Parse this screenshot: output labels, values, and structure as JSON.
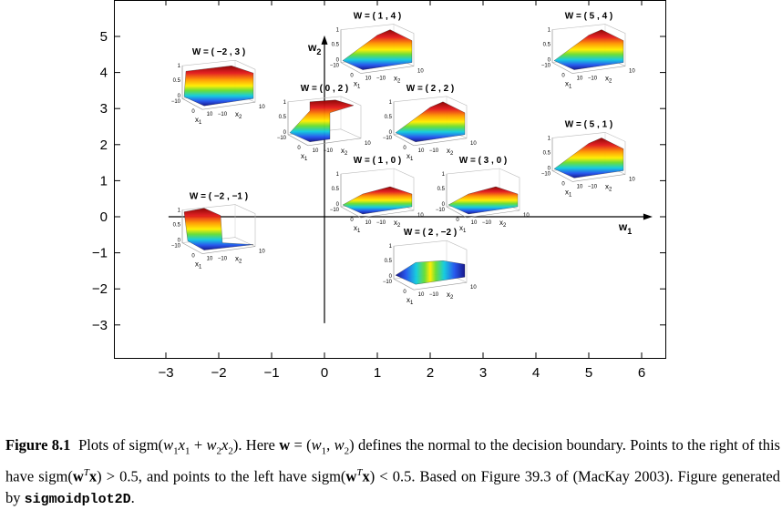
{
  "chart_data": {
    "type": "scatter",
    "title": "",
    "xlabel": "w1",
    "ylabel": "w2",
    "xlim": [
      -3.9,
      7.0
    ],
    "ylim": [
      -3.9,
      5.9
    ],
    "xticks": [
      "−3",
      "−2",
      "−1",
      "0",
      "1",
      "2",
      "3",
      "4",
      "5",
      "6"
    ],
    "yticks": [
      "5",
      "4",
      "3",
      "2",
      "1",
      "0",
      "−1",
      "−2",
      "−3"
    ],
    "axis_x_name": "w",
    "axis_x_sub": "1",
    "axis_y_name": "w",
    "axis_y_sub": "2",
    "inset_zticks": [
      "1",
      "0.5",
      "0"
    ],
    "inset_xy_labels": [
      "−10",
      "0",
      "10",
      "10",
      "−10"
    ],
    "inset_x1": "x",
    "inset_x1_sub": "1",
    "inset_x2": "x",
    "inset_x2_sub": "2",
    "points": [
      {
        "label": "W = ( 1 , 4 )",
        "w": [
          1,
          4
        ]
      },
      {
        "label": "W = ( 5 , 4 )",
        "w": [
          5,
          4
        ]
      },
      {
        "label": "W = ( −2 , 3 )",
        "w": [
          -2,
          3
        ]
      },
      {
        "label": "W = ( 0 , 2 )",
        "w": [
          0,
          2
        ]
      },
      {
        "label": "W = ( 2 , 2 )",
        "w": [
          2,
          2
        ]
      },
      {
        "label": "W = ( 5 , 1 )",
        "w": [
          5,
          1
        ]
      },
      {
        "label": "W = ( 1 , 0 )",
        "w": [
          1,
          0
        ]
      },
      {
        "label": "W = ( 3 , 0 )",
        "w": [
          3,
          0
        ]
      },
      {
        "label": "W = ( −2 , −1 )",
        "w": [
          -2,
          -1
        ]
      },
      {
        "label": "W = ( 2 , −2 )",
        "w": [
          2,
          -2
        ]
      }
    ]
  },
  "caption": {
    "figure_label": "Figure 8.1",
    "t1": "Plots of sigm(",
    "w1": "w",
    "s1": "1",
    "x1": "x",
    "s1b": "1",
    "plus": " + ",
    "w2": "w",
    "s2": "2",
    "x2": "x",
    "s2b": "2",
    "t2": ").  Here ",
    "wbold": "w",
    "eq": " = (",
    "w1b": "w",
    "s1c": "1",
    "comma": ", ",
    "w2b": "w",
    "s2c": "2",
    "t3": ") defines the normal to the decision boundary. Points to the right of this have sigm(",
    "wT1": "w",
    "T1": "T",
    "xb1": "x",
    "t4": ") > 0.5, and points to the left have sigm(",
    "wT2": "w",
    "T2": "T",
    "xb2": "x",
    "t5": ") < 0.5. Based on Figure 39.3 of (MacKay 2003). Figure generated by ",
    "code": "sigmoidplot2D",
    "t6": "."
  }
}
